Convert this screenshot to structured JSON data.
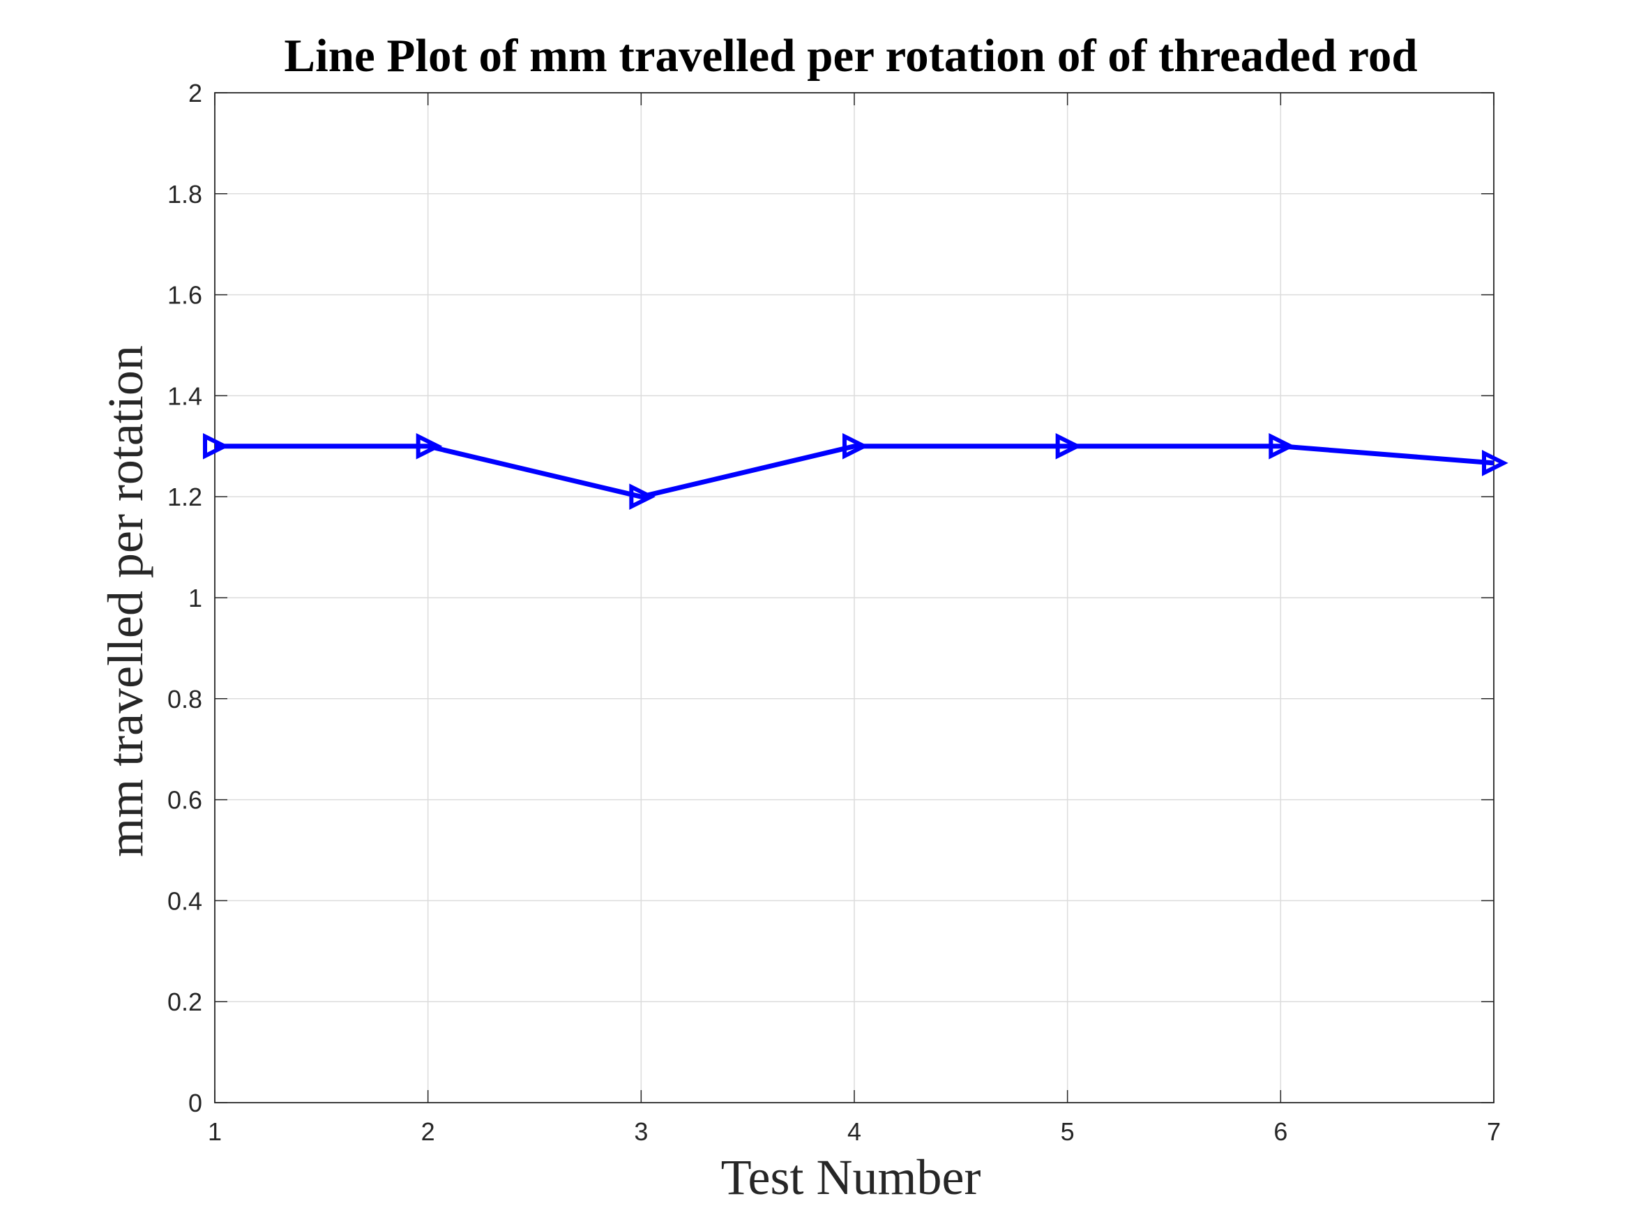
{
  "chart_data": {
    "type": "line",
    "title": "Line Plot of mm travelled per rotation of of threaded rod",
    "xlabel": "Test Number",
    "ylabel": "mm travelled per rotation",
    "xlim": [
      1,
      7
    ],
    "ylim": [
      0,
      2
    ],
    "x_ticks": [
      "1",
      "2",
      "3",
      "4",
      "5",
      "6",
      "7"
    ],
    "y_ticks": [
      "0",
      "0.2",
      "0.4",
      "0.6",
      "0.8",
      "1",
      "1.2",
      "1.4",
      "1.6",
      "1.8",
      "2"
    ],
    "grid": true,
    "series": [
      {
        "x": [
          1,
          2,
          3,
          4,
          5,
          6,
          7
        ],
        "values": [
          1.3,
          1.3,
          1.2,
          1.3,
          1.3,
          1.3,
          1.2667
        ],
        "color": "#0000ff",
        "marker": "triangle-right"
      }
    ]
  }
}
